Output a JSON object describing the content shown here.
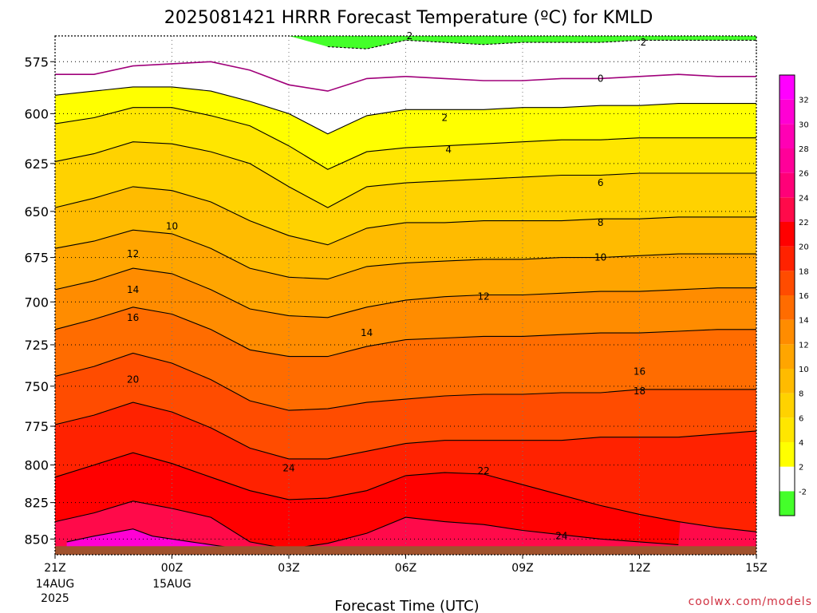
{
  "chart_data": {
    "type": "heatmap",
    "title": "2025081421 HRRR Forecast Temperature (ºC) for KMLD",
    "xlabel": "Forecast Time (UTC)",
    "ylabel": "",
    "y_scale": "pressure (log), inverted",
    "ylim": [
      563,
      861
    ],
    "y_ticks": [
      575,
      600,
      625,
      650,
      675,
      700,
      725,
      750,
      775,
      800,
      825,
      850
    ],
    "x_ticks": [
      {
        "hour": 0,
        "label": "21Z",
        "sub1": "14AUG",
        "sub2": "2025"
      },
      {
        "hour": 3,
        "label": "00Z",
        "sub1": "15AUG",
        "sub2": ""
      },
      {
        "hour": 6,
        "label": "03Z",
        "sub1": "",
        "sub2": ""
      },
      {
        "hour": 9,
        "label": "06Z",
        "sub1": "",
        "sub2": ""
      },
      {
        "hour": 12,
        "label": "09Z",
        "sub1": "",
        "sub2": ""
      },
      {
        "hour": 15,
        "label": "12Z",
        "sub1": "",
        "sub2": ""
      },
      {
        "hour": 18,
        "label": "15Z",
        "sub1": "",
        "sub2": ""
      }
    ],
    "x_hours": [
      0,
      1,
      2,
      3,
      4,
      5,
      6,
      7,
      8,
      9,
      10,
      11,
      12,
      13,
      14,
      15,
      16,
      17,
      18
    ],
    "grid": true,
    "ground_pressure": 855,
    "ground_color": "#a0522d",
    "isotherms": [
      {
        "temp": 24,
        "p": [
          null,
          null,
          null,
          null,
          null,
          null,
          null,
          null,
          null,
          null,
          null,
          null,
          null,
          null,
          null,
          null,
          null,
          null,
          null
        ]
      },
      {
        "temp": 22,
        "p": [
          838,
          832,
          824,
          829,
          835,
          852,
          857,
          853,
          846,
          835,
          838,
          840,
          844,
          847,
          850,
          852,
          854,
          null,
          null
        ]
      },
      {
        "temp": 20,
        "p": [
          808,
          800,
          792,
          799,
          808,
          817,
          823,
          822,
          817,
          807,
          805,
          806,
          813,
          820,
          827,
          833,
          838,
          842,
          845
        ]
      },
      {
        "temp": 18,
        "p": [
          774,
          768,
          760,
          766,
          776,
          789,
          796,
          796,
          791,
          786,
          784,
          784,
          784,
          784,
          782,
          782,
          782,
          780,
          778
        ]
      },
      {
        "temp": 16,
        "p": [
          744,
          738,
          730,
          736,
          746,
          759,
          765,
          764,
          760,
          758,
          756,
          755,
          755,
          754,
          754,
          752,
          752,
          752,
          752
        ]
      },
      {
        "temp": 14,
        "p": [
          716,
          710,
          703,
          707,
          716,
          728,
          732,
          732,
          726,
          722,
          721,
          720,
          720,
          719,
          718,
          718,
          717,
          716,
          716
        ]
      },
      {
        "temp": 12,
        "p": [
          693,
          688,
          681,
          684,
          693,
          704,
          708,
          709,
          703,
          699,
          697,
          696,
          696,
          695,
          694,
          694,
          693,
          692,
          692
        ]
      },
      {
        "temp": 10,
        "p": [
          670,
          666,
          660,
          662,
          670,
          681,
          686,
          687,
          680,
          678,
          677,
          676,
          676,
          675,
          675,
          674,
          673,
          673,
          673
        ]
      },
      {
        "temp": 8,
        "p": [
          648,
          643,
          637,
          639,
          645,
          655,
          663,
          668,
          659,
          656,
          656,
          655,
          655,
          655,
          654,
          654,
          653,
          653,
          653
        ]
      },
      {
        "temp": 6,
        "p": [
          624,
          620,
          614,
          615,
          619,
          625,
          637,
          648,
          637,
          635,
          634,
          633,
          632,
          631,
          631,
          630,
          630,
          630,
          630
        ]
      },
      {
        "temp": 4,
        "p": [
          605,
          602,
          597,
          597,
          601,
          606,
          616,
          628,
          619,
          617,
          616,
          615,
          614,
          613,
          613,
          612,
          612,
          612,
          612
        ]
      },
      {
        "temp": 2,
        "p": [
          591,
          589,
          587,
          587,
          589,
          594,
          600,
          610,
          601,
          598,
          598,
          598,
          597,
          597,
          596,
          596,
          595,
          595,
          595
        ]
      },
      {
        "temp": 0,
        "p": [
          581,
          581,
          577,
          576,
          575,
          579,
          586,
          589,
          583,
          582,
          583,
          584,
          584,
          583,
          583,
          582,
          581,
          582,
          582
        ]
      },
      {
        "temp": -2,
        "p": [
          null,
          null,
          null,
          null,
          null,
          null,
          562,
          568,
          569,
          565,
          566,
          567,
          566,
          566,
          566,
          565,
          565,
          565,
          565
        ]
      }
    ],
    "warm_pocket_24": {
      "hours": [
        0.3,
        1.0,
        2.0,
        2.5,
        3.5,
        4.5,
        5.0
      ],
      "p": [
        852,
        848,
        843,
        848,
        852,
        856,
        856
      ]
    },
    "contour_labels": [
      {
        "temp": 2,
        "hour": 9.1,
        "p": 563
      },
      {
        "temp": 2,
        "hour": 15.1,
        "p": 566
      },
      {
        "temp": 0,
        "hour": 14.0,
        "p": 583
      },
      {
        "temp": 2,
        "hour": 10.0,
        "p": 602
      },
      {
        "temp": 4,
        "hour": 10.1,
        "p": 618
      },
      {
        "temp": 6,
        "hour": 14.0,
        "p": 635
      },
      {
        "temp": 10,
        "hour": 3.0,
        "p": 658
      },
      {
        "temp": 8,
        "hour": 14.0,
        "p": 656
      },
      {
        "temp": 12,
        "hour": 2.0,
        "p": 673
      },
      {
        "temp": 10,
        "hour": 14.0,
        "p": 675
      },
      {
        "temp": 14,
        "hour": 2.0,
        "p": 693
      },
      {
        "temp": 12,
        "hour": 11.0,
        "p": 697
      },
      {
        "temp": 16,
        "hour": 2.0,
        "p": 709
      },
      {
        "temp": 14,
        "hour": 8.0,
        "p": 718
      },
      {
        "temp": 16,
        "hour": 15.0,
        "p": 741
      },
      {
        "temp": 20,
        "hour": 2.0,
        "p": 746
      },
      {
        "temp": 18,
        "hour": 15.0,
        "p": 753
      },
      {
        "temp": 24,
        "hour": 6.0,
        "p": 802
      },
      {
        "temp": 22,
        "hour": 11.0,
        "p": 804
      },
      {
        "temp": 24,
        "hour": 13.0,
        "p": 848
      }
    ],
    "colorbar": {
      "bins": [
        {
          "lo": -4,
          "hi": -2,
          "color": "#44ff2a",
          "label": ""
        },
        {
          "lo": -2,
          "hi": 2,
          "color": "#ffffff",
          "label": "-2"
        },
        {
          "lo": 2,
          "hi": 4,
          "color": "#ffff00",
          "label": "2"
        },
        {
          "lo": 4,
          "hi": 6,
          "color": "#ffe600",
          "label": "4"
        },
        {
          "lo": 6,
          "hi": 8,
          "color": "#ffd200",
          "label": "6"
        },
        {
          "lo": 8,
          "hi": 10,
          "color": "#ffbb00",
          "label": "8"
        },
        {
          "lo": 10,
          "hi": 12,
          "color": "#ffa500",
          "label": "10"
        },
        {
          "lo": 12,
          "hi": 14,
          "color": "#ff8c00",
          "label": "12"
        },
        {
          "lo": 14,
          "hi": 16,
          "color": "#ff6c00",
          "label": "14"
        },
        {
          "lo": 16,
          "hi": 18,
          "color": "#ff4c00",
          "label": "16"
        },
        {
          "lo": 18,
          "hi": 20,
          "color": "#ff2200",
          "label": "18"
        },
        {
          "lo": 20,
          "hi": 22,
          "color": "#ff0000",
          "label": "20"
        },
        {
          "lo": 22,
          "hi": 24,
          "color": "#ff0a4a",
          "label": "22"
        },
        {
          "lo": 24,
          "hi": 26,
          "color": "#ff0078",
          "label": "24"
        },
        {
          "lo": 26,
          "hi": 28,
          "color": "#ff0099",
          "label": "26"
        },
        {
          "lo": 28,
          "hi": 30,
          "color": "#ff00b4",
          "label": "28"
        },
        {
          "lo": 30,
          "hi": 32,
          "color": "#ff00d4",
          "label": "30"
        },
        {
          "lo": 32,
          "hi": 34,
          "color": "#ff00ff",
          "label": "32"
        }
      ],
      "labels_shown": [
        "-2",
        "2",
        "4",
        "6",
        "8",
        "10",
        "12",
        "14",
        "16",
        "18",
        "20",
        "22",
        "24",
        "26",
        "28",
        "30",
        "32"
      ]
    },
    "zero_isotherm_color": "#a0007a"
  },
  "credit": "coolwx.com/models",
  "credit_color": "#d03040"
}
